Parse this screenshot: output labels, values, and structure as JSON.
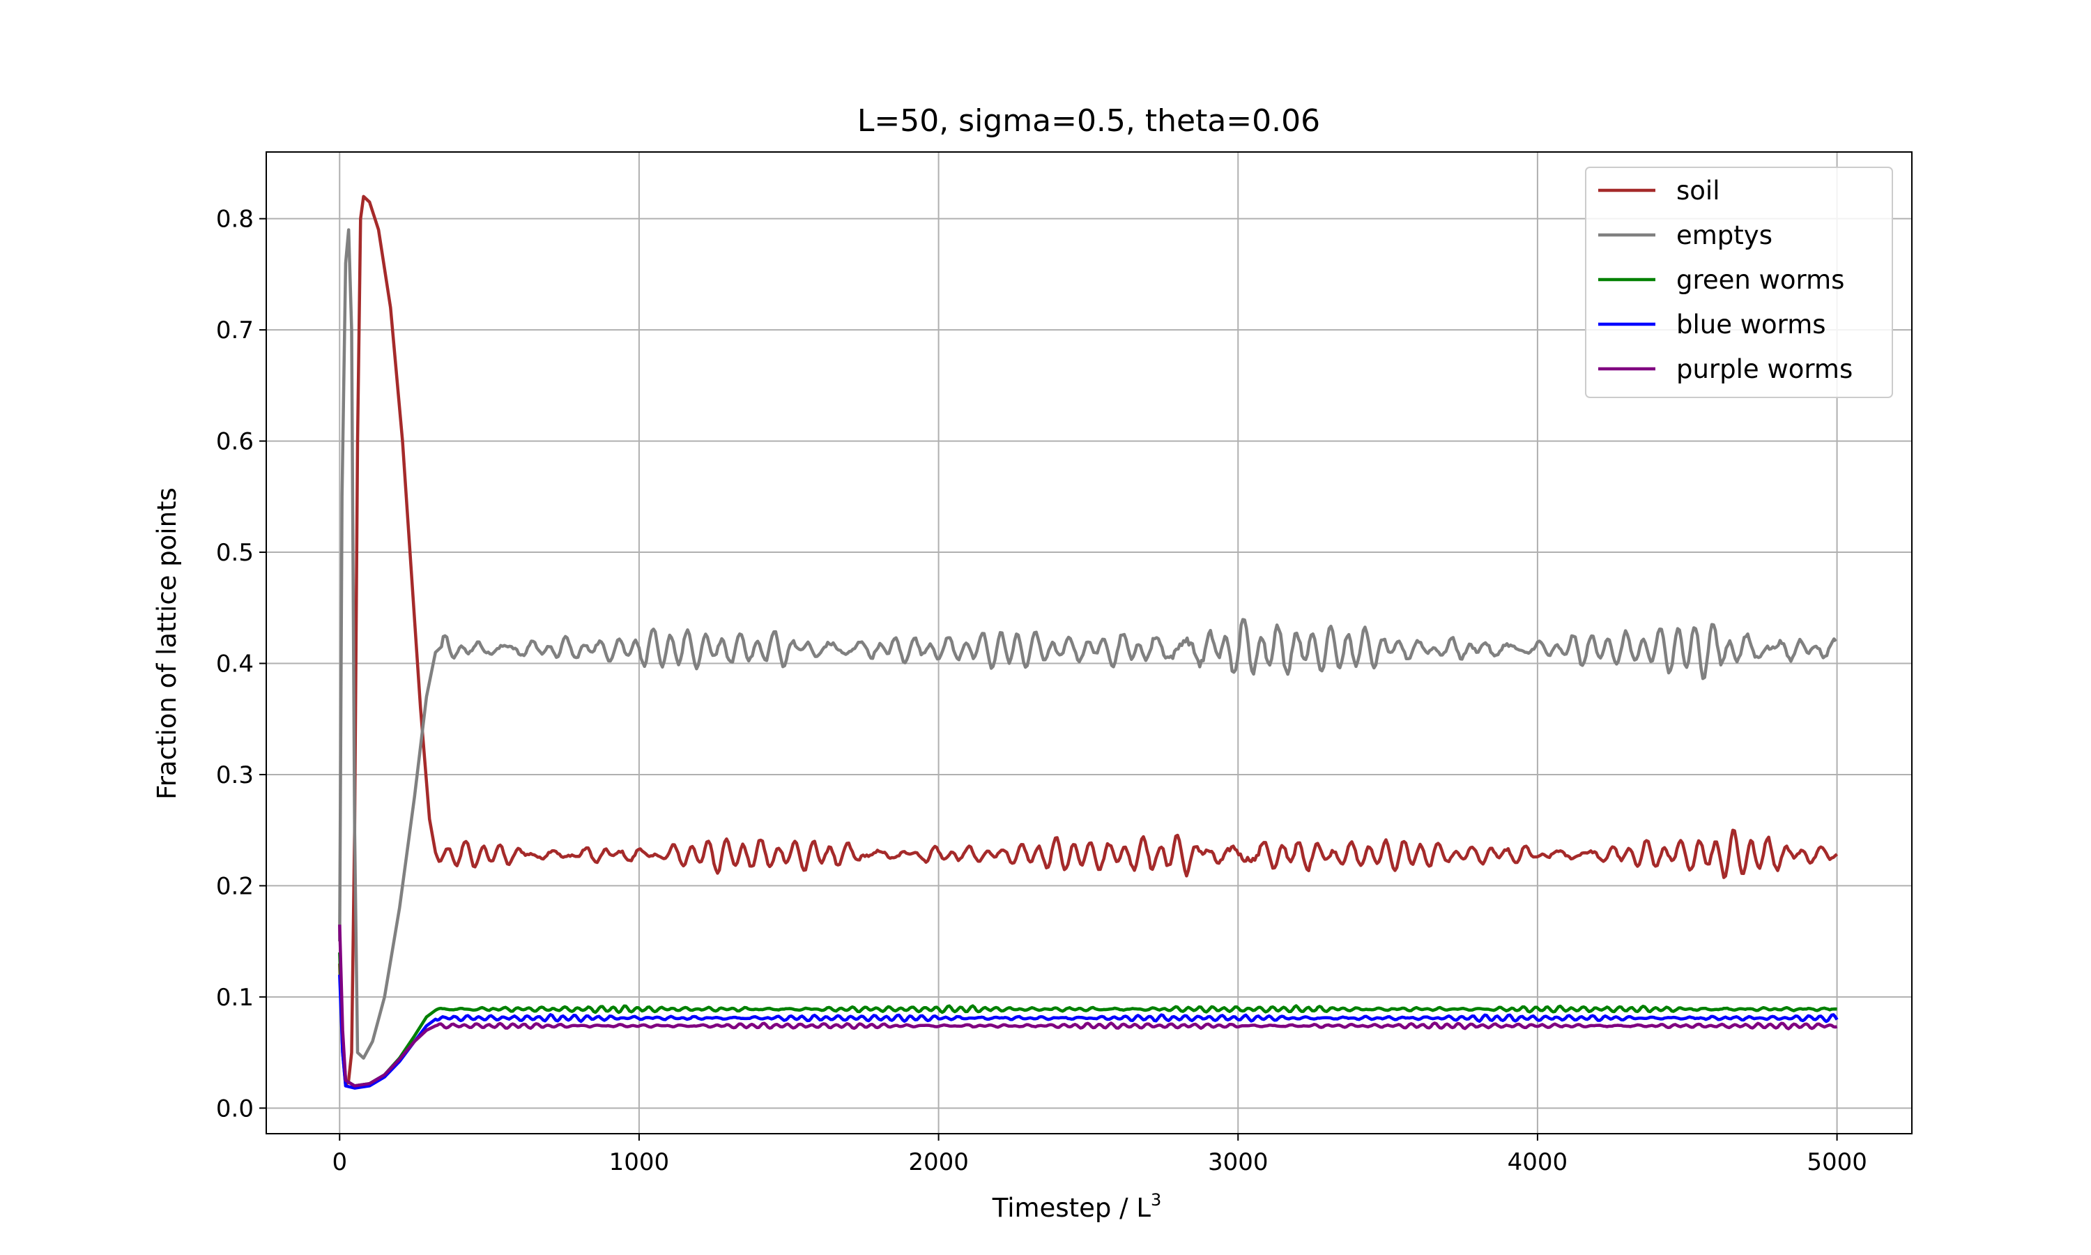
{
  "chart_data": {
    "type": "line",
    "title": "L=50, sigma=0.5, theta=0.06",
    "xlabel": "Timestep / L",
    "xlabel_superscript": "3",
    "ylabel": "Fraction of lattice points",
    "xlim": [
      -245,
      5250
    ],
    "ylim": [
      -0.023,
      0.86
    ],
    "xticks": [
      0,
      1000,
      2000,
      3000,
      4000,
      5000
    ],
    "yticks": [
      0.0,
      0.1,
      0.2,
      0.3,
      0.4,
      0.5,
      0.6,
      0.7,
      0.8
    ],
    "ytick_labels": [
      "0.0",
      "0.1",
      "0.2",
      "0.3",
      "0.4",
      "0.5",
      "0.6",
      "0.7",
      "0.8"
    ],
    "grid": true,
    "legend_position": "top-right",
    "x_end": 5000,
    "series": [
      {
        "name": "soil",
        "color": "#a52a2a",
        "initial": [
          [
            0,
            0.13
          ],
          [
            10,
            0.05
          ],
          [
            20,
            0.02
          ],
          [
            30,
            0.025
          ],
          [
            40,
            0.05
          ],
          [
            50,
            0.25
          ],
          [
            60,
            0.6
          ],
          [
            70,
            0.8
          ],
          [
            80,
            0.82
          ],
          [
            100,
            0.815
          ],
          [
            130,
            0.79
          ],
          [
            170,
            0.72
          ],
          [
            210,
            0.6
          ],
          [
            240,
            0.48
          ],
          [
            270,
            0.36
          ],
          [
            300,
            0.26
          ],
          [
            320,
            0.23
          ]
        ],
        "steady_mean": 0.228,
        "steady_amplitude": 0.0085,
        "steady_period": 58,
        "amplitude_bursts": [
          [
            1500,
            0.3,
            300
          ],
          [
            2800,
            0.9,
            220
          ],
          [
            3100,
            0.7,
            220
          ],
          [
            4600,
            0.6,
            240
          ]
        ]
      },
      {
        "name": "emptys",
        "color": "#808080",
        "initial": [
          [
            0,
            0.15
          ],
          [
            8,
            0.55
          ],
          [
            20,
            0.76
          ],
          [
            30,
            0.79
          ],
          [
            40,
            0.7
          ],
          [
            50,
            0.25
          ],
          [
            60,
            0.05
          ],
          [
            80,
            0.045
          ],
          [
            110,
            0.06
          ],
          [
            150,
            0.1
          ],
          [
            200,
            0.18
          ],
          [
            250,
            0.28
          ],
          [
            290,
            0.37
          ],
          [
            320,
            0.41
          ],
          [
            340,
            0.415
          ]
        ],
        "steady_mean": 0.413,
        "steady_amplitude": 0.011,
        "steady_period": 58,
        "amplitude_bursts": [
          [
            1500,
            0.3,
            300
          ],
          [
            2800,
            0.9,
            220
          ],
          [
            3100,
            0.7,
            220
          ],
          [
            4600,
            0.6,
            240
          ]
        ]
      },
      {
        "name": "green worms",
        "color": "#008000",
        "initial": [
          [
            0,
            0.14
          ],
          [
            10,
            0.06
          ],
          [
            20,
            0.025
          ],
          [
            50,
            0.02
          ],
          [
            100,
            0.022
          ],
          [
            150,
            0.03
          ],
          [
            200,
            0.045
          ],
          [
            250,
            0.065
          ],
          [
            290,
            0.082
          ],
          [
            320,
            0.088
          ]
        ],
        "steady_mean": 0.089,
        "steady_amplitude": 0.0018,
        "steady_period": 40
      },
      {
        "name": "blue worms",
        "color": "#0000ff",
        "initial": [
          [
            0,
            0.12
          ],
          [
            10,
            0.05
          ],
          [
            20,
            0.02
          ],
          [
            50,
            0.018
          ],
          [
            100,
            0.02
          ],
          [
            150,
            0.028
          ],
          [
            200,
            0.042
          ],
          [
            250,
            0.06
          ],
          [
            290,
            0.074
          ],
          [
            320,
            0.08
          ]
        ],
        "steady_mean": 0.081,
        "steady_amplitude": 0.0018,
        "steady_period": 40
      },
      {
        "name": "purple worms",
        "color": "#800080",
        "initial": [
          [
            0,
            0.165
          ],
          [
            10,
            0.07
          ],
          [
            20,
            0.025
          ],
          [
            50,
            0.02
          ],
          [
            100,
            0.022
          ],
          [
            150,
            0.03
          ],
          [
            200,
            0.044
          ],
          [
            250,
            0.06
          ],
          [
            290,
            0.07
          ],
          [
            320,
            0.074
          ]
        ],
        "steady_mean": 0.074,
        "steady_amplitude": 0.0015,
        "steady_period": 40
      }
    ]
  }
}
